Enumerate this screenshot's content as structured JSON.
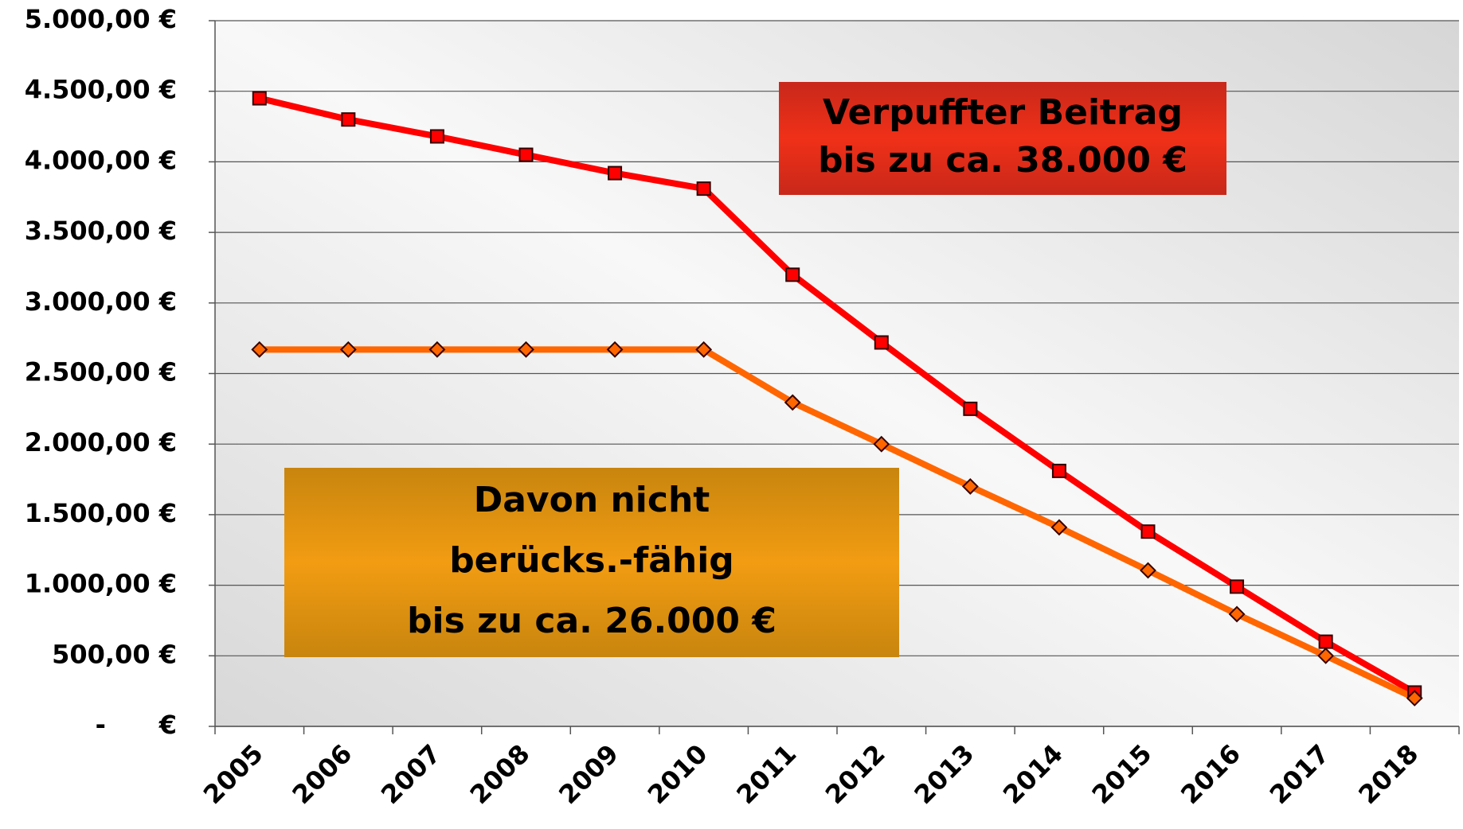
{
  "chart_data": {
    "type": "line",
    "categories": [
      "2005",
      "2006",
      "2007",
      "2008",
      "2009",
      "2010",
      "2011",
      "2012",
      "2013",
      "2014",
      "2015",
      "2016",
      "2017",
      "2018"
    ],
    "series": [
      {
        "color": "#ff0000",
        "marker": "square",
        "values": [
          4450,
          4300,
          4180,
          4050,
          3920,
          3810,
          3200,
          2720,
          2250,
          1810,
          1380,
          990,
          600,
          240
        ]
      },
      {
        "color": "#ff6600",
        "marker": "diamond",
        "values": [
          2670,
          2670,
          2670,
          2670,
          2670,
          2670,
          2295,
          2000,
          1700,
          1410,
          1105,
          795,
          500,
          200
        ]
      }
    ],
    "ylim": [
      0,
      5000
    ],
    "yticks": [
      {
        "value": 0,
        "label": "-      €"
      },
      {
        "value": 500,
        "label": "500,00 €"
      },
      {
        "value": 1000,
        "label": "1.000,00 €"
      },
      {
        "value": 1500,
        "label": "1.500,00 €"
      },
      {
        "value": 2000,
        "label": "2.000,00 €"
      },
      {
        "value": 2500,
        "label": "2.500,00 €"
      },
      {
        "value": 3000,
        "label": "3.000,00 €"
      },
      {
        "value": 3500,
        "label": "3.500,00 €"
      },
      {
        "value": 4000,
        "label": "4.000,00 €"
      },
      {
        "value": 4500,
        "label": "4.500,00 €"
      },
      {
        "value": 5000,
        "label": "5.000,00 €"
      }
    ],
    "grid": true,
    "annotations": [
      {
        "lines": [
          "Verpuffter Beitrag",
          "bis zu ca. 38.000 €"
        ]
      },
      {
        "lines": [
          "Davon nicht",
          "berücks.-fähig",
          "bis zu ca. 26.000 €"
        ]
      }
    ]
  }
}
